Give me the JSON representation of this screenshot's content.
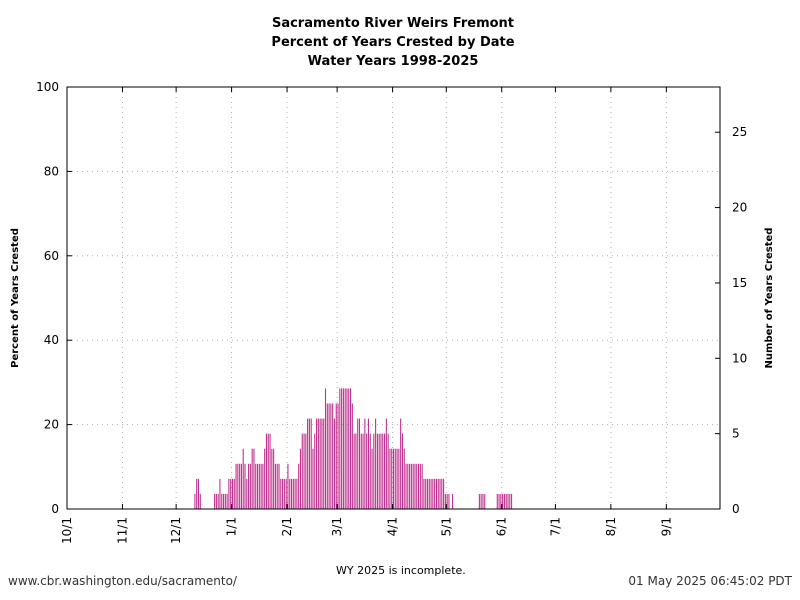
{
  "title_lines": [
    "Sacramento River Weirs Fremont",
    "Percent of Years Crested by Date",
    "Water Years 1998-2025"
  ],
  "footer": {
    "url": "www.cbr.washington.edu/sacramento/",
    "note": "WY 2025 is incomplete.",
    "timestamp": "01 May 2025 06:45:02 PDT"
  },
  "colors": {
    "bar": "#c0308f",
    "grid": "#b0b0b0"
  },
  "chart_data": {
    "type": "bar",
    "title": "Sacramento River Weirs Fremont / Percent of Years Crested by Date / Water Years 1998-2025",
    "ylabel": "Percent of Years Crested",
    "y2label": "Number of Years Crested",
    "ylim": [
      0,
      100
    ],
    "y2lim": [
      0,
      28
    ],
    "yticks": [
      0,
      20,
      40,
      60,
      80,
      100
    ],
    "y2ticks": [
      0,
      5,
      10,
      15,
      20,
      25
    ],
    "xticks": [
      "10/1",
      "11/1",
      "12/1",
      "1/1",
      "2/1",
      "3/1",
      "4/1",
      "5/1",
      "6/1",
      "7/1",
      "8/1",
      "9/1"
    ],
    "x_unit": "day of water year (1 = Oct 1)",
    "grid": true,
    "series": [
      {
        "values": {
          "71": 1,
          "72": 2,
          "73": 2,
          "74": 1,
          "82": 1,
          "83": 1,
          "84": 1,
          "85": 2,
          "86": 1,
          "87": 1,
          "88": 1,
          "89": 1,
          "90": 2,
          "91": 2,
          "92": 2,
          "93": 2,
          "94": 3,
          "95": 3,
          "96": 3,
          "97": 3,
          "98": 4,
          "99": 3,
          "100": 2,
          "101": 3,
          "102": 3,
          "103": 4,
          "104": 4,
          "105": 3,
          "106": 3,
          "107": 3,
          "108": 3,
          "109": 3,
          "110": 4,
          "111": 5,
          "112": 5,
          "113": 5,
          "114": 4,
          "115": 4,
          "116": 3,
          "117": 3,
          "118": 3,
          "119": 2,
          "120": 2,
          "121": 2,
          "122": 2,
          "123": 3,
          "124": 2,
          "125": 2,
          "126": 2,
          "127": 2,
          "128": 2,
          "129": 3,
          "130": 4,
          "131": 5,
          "132": 5,
          "133": 5,
          "134": 6,
          "135": 6,
          "136": 6,
          "137": 4,
          "138": 5,
          "139": 6,
          "140": 6,
          "141": 6,
          "142": 6,
          "143": 6,
          "144": 8,
          "145": 7,
          "146": 7,
          "147": 7,
          "148": 7,
          "149": 6,
          "150": 7,
          "151": 7,
          "152": 8,
          "153": 8,
          "154": 8,
          "155": 8,
          "156": 8,
          "157": 8,
          "158": 8,
          "159": 7,
          "160": 5,
          "161": 5,
          "162": 6,
          "163": 6,
          "164": 5,
          "165": 5,
          "166": 6,
          "167": 5,
          "168": 6,
          "169": 5,
          "170": 4,
          "171": 5,
          "172": 6,
          "173": 5,
          "174": 5,
          "175": 5,
          "176": 5,
          "177": 5,
          "178": 6,
          "179": 5,
          "180": 4,
          "181": 4,
          "182": 4,
          "183": 4,
          "184": 4,
          "185": 4,
          "186": 6,
          "187": 5,
          "188": 4,
          "189": 3,
          "190": 3,
          "191": 3,
          "192": 3,
          "193": 3,
          "194": 3,
          "195": 3,
          "196": 3,
          "197": 3,
          "198": 3,
          "199": 2,
          "200": 2,
          "201": 2,
          "202": 2,
          "203": 2,
          "204": 2,
          "205": 2,
          "206": 2,
          "207": 2,
          "208": 2,
          "209": 2,
          "210": 2,
          "211": 1,
          "212": 1,
          "213": 1,
          "215": 1,
          "230": 1,
          "231": 1,
          "232": 1,
          "233": 1,
          "240": 1,
          "241": 1,
          "242": 1,
          "243": 1,
          "244": 1,
          "245": 1,
          "246": 1,
          "247": 1,
          "248": 1
        },
        "value_unit": "number of years crested (of 28)"
      }
    ]
  }
}
